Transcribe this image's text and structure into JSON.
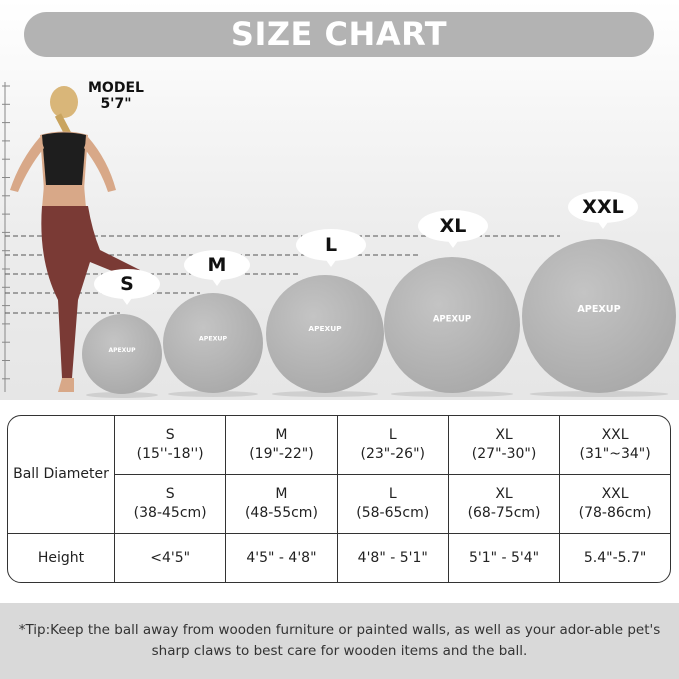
{
  "header": {
    "title": "SIZE CHART"
  },
  "model": {
    "label": "MODEL",
    "height": "5'7\""
  },
  "balls": [
    {
      "size": "S",
      "brand": "APEXUP"
    },
    {
      "size": "M",
      "brand": "APEXUP"
    },
    {
      "size": "L",
      "brand": "APEXUP"
    },
    {
      "size": "XL",
      "brand": "APEXUP"
    },
    {
      "size": "XXL",
      "brand": "APEXUP"
    }
  ],
  "colors": {
    "header_bg": "#b3b3b3",
    "ball": "#a9a9a9",
    "tip_bg": "#d9d9d9"
  },
  "table": {
    "diameter_label": "Ball Diameter",
    "height_label": "Height",
    "inches": [
      {
        "size": "S",
        "range": "(15''-18'')"
      },
      {
        "size": "M",
        "range": "(19\"-22\")"
      },
      {
        "size": "L",
        "range": "(23\"-26\")"
      },
      {
        "size": "XL",
        "range": "(27\"-30\")"
      },
      {
        "size": "XXL",
        "range": "(31\"~34\")"
      }
    ],
    "cm": [
      {
        "size": "S",
        "range": "(38-45cm)"
      },
      {
        "size": "M",
        "range": "(48-55cm)"
      },
      {
        "size": "L",
        "range": "(58-65cm)"
      },
      {
        "size": "XL",
        "range": "(68-75cm)"
      },
      {
        "size": "XXL",
        "range": "(78-86cm)"
      }
    ],
    "heights": [
      "<4'5\"",
      "4'5\" - 4'8\"",
      "4'8\" - 5'1\"",
      "5'1\" - 5'4\"",
      "5.4\"-5.7\""
    ]
  },
  "tip": "*Tip:Keep the ball away from wooden furniture or painted walls, as well as your ador-able pet's sharp claws to best care for wooden items and the ball."
}
